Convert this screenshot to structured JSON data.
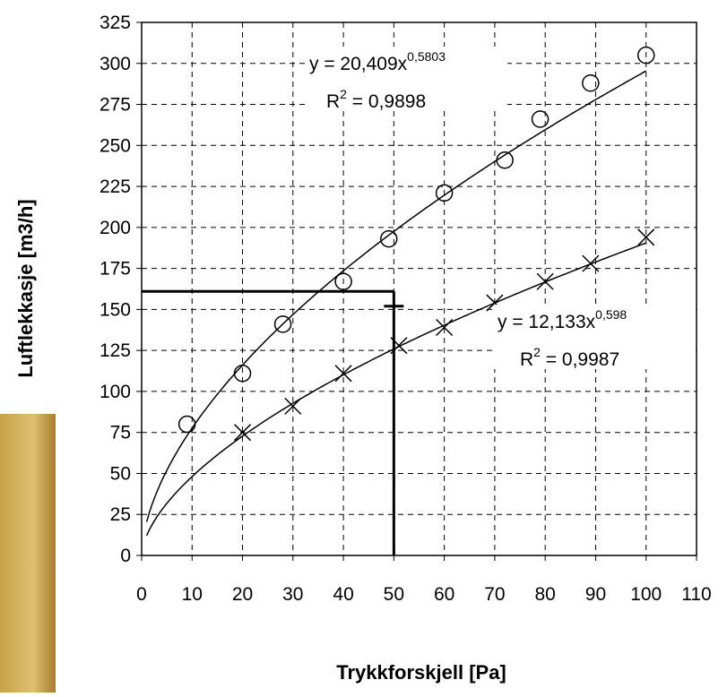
{
  "chart_data": {
    "type": "scatter",
    "x_label": "Trykkforskjell [Pa]",
    "y_label": "Luftlekkasje [m3/h]",
    "xlim": [
      0,
      110
    ],
    "xticks": [
      0,
      10,
      20,
      30,
      40,
      50,
      60,
      70,
      80,
      90,
      100,
      110
    ],
    "ylim": [
      0,
      325
    ],
    "yticks": [
      0,
      25,
      50,
      75,
      100,
      125,
      150,
      175,
      200,
      225,
      250,
      275,
      300,
      325
    ],
    "grid": true,
    "series": [
      {
        "marker": "circle",
        "color": "#000000",
        "x": [
          9,
          20,
          28,
          40,
          49,
          60,
          72,
          79,
          89,
          100
        ],
        "values": [
          80,
          111,
          141,
          167,
          193,
          221,
          241,
          266,
          288,
          305
        ],
        "trendline": {
          "a": 20.409,
          "b": 0.5803,
          "x_range": [
            1,
            100
          ],
          "equation": "y = 20,409x",
          "equation_exponent": "0,5803",
          "r2": "R",
          "r2_exponent": "2",
          "r2_text": " = 0,9898"
        }
      },
      {
        "marker": "x",
        "color": "#000000",
        "x": [
          20,
          30,
          40,
          51,
          60,
          70,
          80,
          89,
          100
        ],
        "values": [
          75,
          91,
          111,
          128,
          139,
          154,
          167,
          178,
          194
        ],
        "trendline": {
          "a": 12.133,
          "b": 0.598,
          "x_range": [
            1,
            100
          ],
          "equation": "y = 12,133x",
          "equation_exponent": "0,598",
          "r2": "R",
          "r2_exponent": "2",
          "r2_text": " = 0,9987"
        }
      }
    ],
    "reference": {
      "x": 50,
      "y": 161,
      "marker_y": 152
    }
  }
}
